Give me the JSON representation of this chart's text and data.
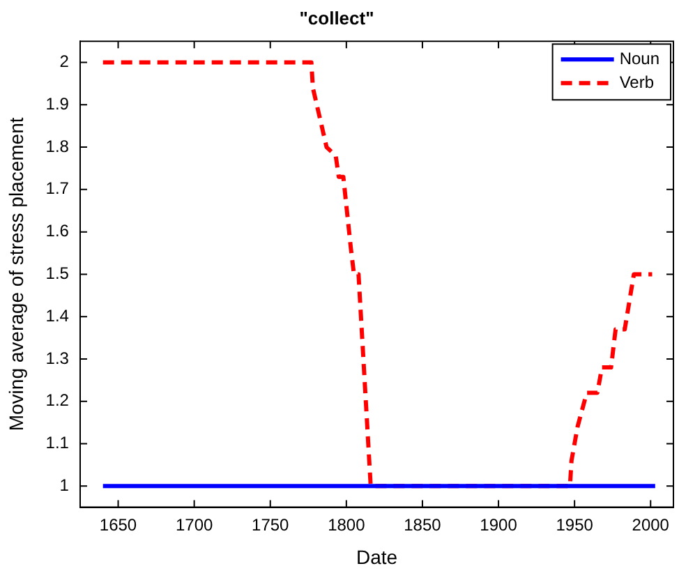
{
  "chart_data": {
    "type": "line",
    "title": "\"collect\"",
    "xlabel": "Date",
    "ylabel": "Moving average of stress placement",
    "xlim": [
      1625,
      2015
    ],
    "xticks": [
      1650,
      1700,
      1750,
      1800,
      1850,
      1900,
      1950,
      2000
    ],
    "ylim": [
      0.95,
      2.05
    ],
    "yticks": [
      1,
      1.1,
      1.2,
      1.3,
      1.4,
      1.5,
      1.6,
      1.7,
      1.8,
      1.9,
      2
    ],
    "grid": false,
    "legend": "top right",
    "marker": "none",
    "series": [
      {
        "name": "Noun",
        "color": "#0000ff",
        "line_style": "solid",
        "x": [
          1640,
          2003
        ],
        "values": [
          1,
          1
        ]
      },
      {
        "name": "Verb",
        "color": "#ff0000",
        "line_style": "dashed",
        "x": [
          1640,
          1777,
          1778,
          1787,
          1793,
          1795,
          1798,
          1803,
          1805,
          1808,
          1812,
          1816,
          1947,
          1948,
          1952,
          1958,
          1965,
          1968,
          1974,
          1977,
          1983,
          1989,
          2001
        ],
        "values": [
          2,
          2,
          1.94,
          1.8,
          1.78,
          1.73,
          1.73,
          1.56,
          1.5,
          1.5,
          1.25,
          1,
          1,
          1.06,
          1.14,
          1.22,
          1.22,
          1.28,
          1.28,
          1.37,
          1.37,
          1.5,
          1.5
        ]
      }
    ]
  }
}
